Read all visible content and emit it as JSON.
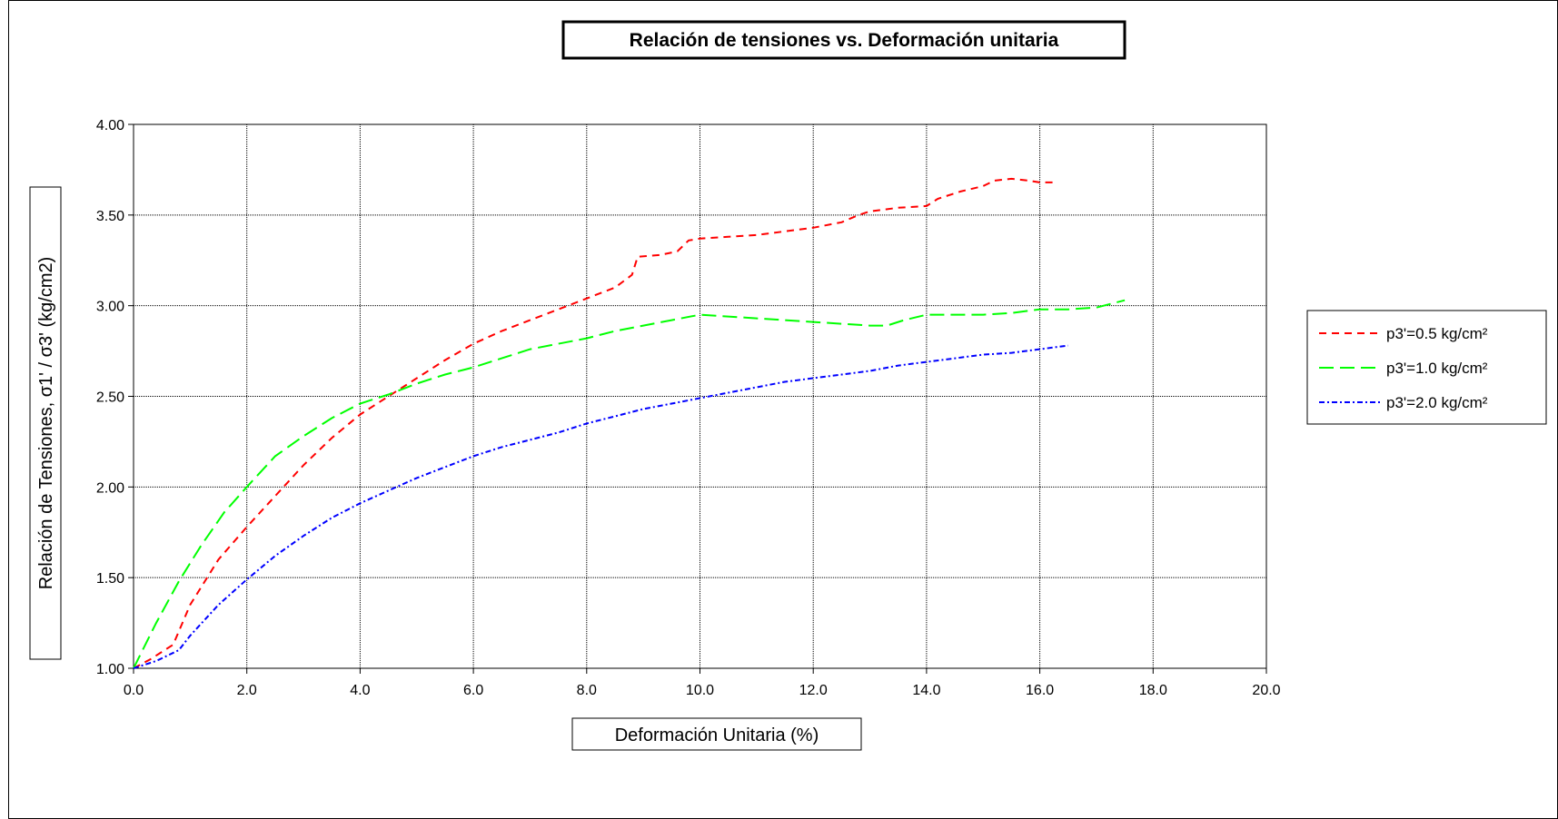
{
  "chart_data": {
    "type": "line",
    "title": "Relación de tensiones vs. Deformación unitaria",
    "xlabel": "Deformación Unitaria (%)",
    "ylabel": "Relación de Tensiones, σ1' / σ3' (kg/cm2)",
    "xlim": [
      0,
      20
    ],
    "ylim": [
      1,
      4
    ],
    "xticks": [
      "0.0",
      "2.0",
      "4.0",
      "6.0",
      "8.0",
      "10.0",
      "12.0",
      "14.0",
      "16.0",
      "18.0",
      "20.0"
    ],
    "yticks": [
      "1.00",
      "1.50",
      "2.00",
      "2.50",
      "3.00",
      "3.50",
      "4.00"
    ],
    "grid": true,
    "legend_position": "right",
    "series": [
      {
        "name": "p3'=0.5 kg/cm²",
        "color": "#ff0000",
        "dash": "short-dash",
        "x": [
          0,
          0.3,
          0.7,
          1.0,
          1.5,
          2.0,
          2.5,
          3.0,
          3.5,
          4.0,
          4.5,
          5.0,
          5.5,
          6.0,
          6.5,
          7.0,
          7.5,
          8.0,
          8.5,
          8.8,
          8.9,
          9.3,
          9.6,
          9.8,
          10.0,
          10.5,
          11.0,
          11.5,
          12.0,
          12.5,
          12.8,
          13.0,
          13.5,
          14.0,
          14.2,
          14.6,
          15.0,
          15.2,
          15.5,
          15.8,
          16.0,
          16.3
        ],
        "y": [
          1.0,
          1.05,
          1.13,
          1.35,
          1.6,
          1.78,
          1.95,
          2.12,
          2.27,
          2.4,
          2.5,
          2.6,
          2.7,
          2.79,
          2.86,
          2.92,
          2.98,
          3.04,
          3.1,
          3.17,
          3.27,
          3.28,
          3.3,
          3.36,
          3.37,
          3.38,
          3.39,
          3.41,
          3.43,
          3.46,
          3.5,
          3.52,
          3.54,
          3.55,
          3.59,
          3.63,
          3.66,
          3.69,
          3.7,
          3.69,
          3.68,
          3.68
        ]
      },
      {
        "name": "p3'=1.0 kg/cm²",
        "color": "#00ff00",
        "dash": "long-dash",
        "x": [
          0,
          0.4,
          0.8,
          1.2,
          1.6,
          2.0,
          2.5,
          3.0,
          3.5,
          4.0,
          4.5,
          5.0,
          5.5,
          6.0,
          6.5,
          7.0,
          7.5,
          8.0,
          8.5,
          9.0,
          9.5,
          10.0,
          10.5,
          11.0,
          11.5,
          12.0,
          12.5,
          13.0,
          13.3,
          13.6,
          14.0,
          14.5,
          15.0,
          15.5,
          16.0,
          16.5,
          17.0,
          17.5
        ],
        "y": [
          1.0,
          1.25,
          1.48,
          1.68,
          1.86,
          2.0,
          2.17,
          2.28,
          2.38,
          2.46,
          2.51,
          2.57,
          2.62,
          2.66,
          2.71,
          2.76,
          2.79,
          2.82,
          2.86,
          2.89,
          2.92,
          2.95,
          2.94,
          2.93,
          2.92,
          2.91,
          2.9,
          2.89,
          2.89,
          2.92,
          2.95,
          2.95,
          2.95,
          2.96,
          2.98,
          2.98,
          2.99,
          3.03
        ]
      },
      {
        "name": "p3'=2.0 kg/cm²",
        "color": "#0000ff",
        "dash": "dotted-dash",
        "x": [
          0,
          0.4,
          0.8,
          1.0,
          1.5,
          2.0,
          2.5,
          3.0,
          3.5,
          4.0,
          4.5,
          5.0,
          5.5,
          6.0,
          6.5,
          7.0,
          7.5,
          8.0,
          8.5,
          9.0,
          9.5,
          10.0,
          10.5,
          11.0,
          11.5,
          12.0,
          12.5,
          13.0,
          13.5,
          14.0,
          14.5,
          15.0,
          15.5,
          16.0,
          16.5
        ],
        "y": [
          1.0,
          1.04,
          1.1,
          1.18,
          1.35,
          1.49,
          1.62,
          1.73,
          1.83,
          1.91,
          1.98,
          2.05,
          2.11,
          2.17,
          2.22,
          2.26,
          2.3,
          2.35,
          2.39,
          2.43,
          2.46,
          2.49,
          2.52,
          2.55,
          2.58,
          2.6,
          2.62,
          2.64,
          2.67,
          2.69,
          2.71,
          2.73,
          2.74,
          2.76,
          2.78
        ]
      }
    ]
  }
}
